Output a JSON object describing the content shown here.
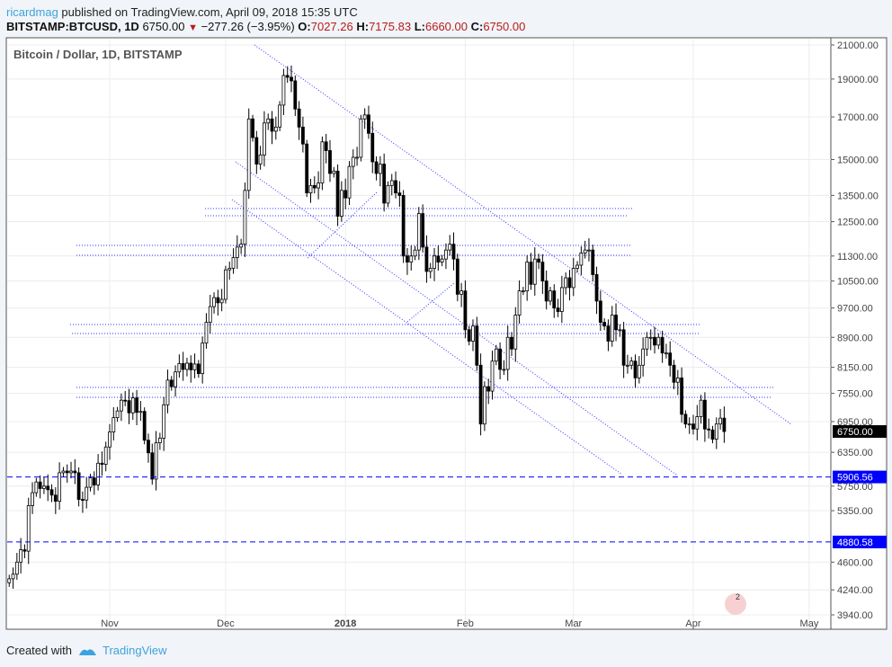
{
  "header": {
    "user": "ricardmag",
    "published": "published on TradingView.com, April 09, 2018 15:35 UTC",
    "symbol": "BITSTAMP:BTCUSD, 1D",
    "last": "6750.00",
    "change": "−277.26 (−3.95%)",
    "o_label": "O:",
    "o": "7027.26",
    "h_label": "H:",
    "h": "7175.83",
    "l_label": "L:",
    "l": "6660.00",
    "c_label": "C:",
    "c": "6750.00"
  },
  "footer": {
    "created_with": "Created with",
    "brand": "TradingView"
  },
  "colors": {
    "up": "#ffffff",
    "down": "#000000",
    "line": "#3333ff",
    "level": "#0000ff"
  },
  "chart_data": {
    "type": "candlestick",
    "title": "Bitcoin / Dollar, 1D, BITSTAMP",
    "y_scale": "log",
    "ylim": [
      3940,
      21000
    ],
    "y_ticks": [
      "21000.00",
      "19000.00",
      "17000.00",
      "15000.00",
      "13500.00",
      "12500.00",
      "11300.00",
      "10500.00",
      "9700.00",
      "8900.00",
      "8150.00",
      "7550.00",
      "6950.00",
      "6350.00",
      "5750.00",
      "5350.00",
      "4600.00",
      "4240.00",
      "3940.00"
    ],
    "x_ticks": [
      {
        "label": "Nov",
        "day": 26
      },
      {
        "label": "Dec",
        "day": 56
      },
      {
        "label": "2018",
        "day": 87
      },
      {
        "label": "Feb",
        "day": 118
      },
      {
        "label": "Mar",
        "day": 146
      },
      {
        "label": "Apr",
        "day": 177
      },
      {
        "label": "May",
        "day": 207
      }
    ],
    "start_date": "2017-10-06",
    "first_open": 4330,
    "closes": [
      4380,
      4440,
      4600,
      4770,
      4750,
      5430,
      5640,
      5820,
      5710,
      5750,
      5690,
      5600,
      5500,
      5980,
      6010,
      5980,
      6010,
      5980,
      5530,
      5520,
      5730,
      5890,
      5770,
      6150,
      6130,
      6450,
      6740,
      7030,
      7170,
      7400,
      7390,
      7130,
      7450,
      7140,
      7160,
      6580,
      6340,
      5870,
      6530,
      6620,
      7300,
      7850,
      7700,
      8040,
      8240,
      8100,
      8250,
      8090,
      8230,
      8000,
      8750,
      9300,
      9740,
      10000,
      9850,
      9950,
      10850,
      10900,
      11250,
      11600,
      11700,
      13700,
      16900,
      16000,
      14800,
      15200,
      16700,
      16900,
      16300,
      16500,
      17600,
      19200,
      19100,
      18900,
      17400,
      16500,
      15700,
      13600,
      13900,
      13800,
      14000,
      15800,
      15400,
      14400,
      14500,
      12700,
      13700,
      13400,
      14700,
      15100,
      15100,
      16900,
      17100,
      16200,
      14900,
      14400,
      14800,
      13200,
      13900,
      14100,
      13600,
      13500,
      11300,
      11100,
      11300,
      11500,
      12800,
      11600,
      10800,
      10900,
      11300,
      11100,
      11200,
      11500,
      11700,
      11200,
      10100,
      10200,
      9100,
      8800,
      9200,
      8200,
      6900,
      7700,
      7600,
      8300,
      8600,
      8100,
      8100,
      8900,
      8600,
      9500,
      10200,
      10200,
      11100,
      10400,
      11200,
      11100,
      10500,
      9900,
      10200,
      9700,
      9600,
      10300,
      10600,
      10300,
      10900,
      11000,
      11400,
      11500,
      11500,
      10700,
      9900,
      9300,
      9200,
      8800,
      9500,
      9100,
      9100,
      8200,
      8200,
      8300,
      7900,
      8200,
      8600,
      8900,
      8900,
      8700,
      8900,
      8500,
      8500,
      8200,
      7800,
      7900,
      7100,
      6900,
      6900,
      6800,
      7050,
      7400,
      6800,
      6780,
      6600,
      6900,
      7020,
      6750
    ],
    "last_price_label": "6750.00",
    "levels": [
      {
        "price": 5906.56,
        "label": "5906.56"
      },
      {
        "price": 4880.58,
        "label": "4880.58"
      }
    ],
    "watermark_badge": "2"
  }
}
